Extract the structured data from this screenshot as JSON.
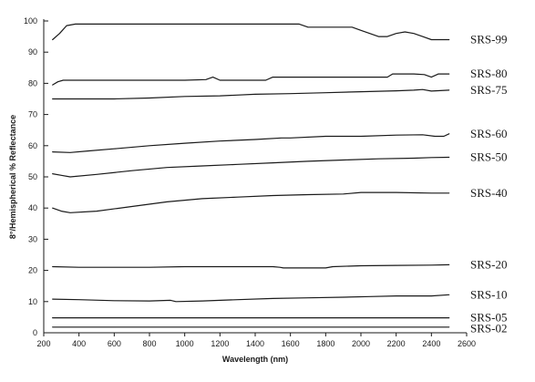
{
  "chart_data": {
    "type": "line",
    "title": "",
    "xlabel": "Wavelength (nm)",
    "ylabel": "8°/Hemispherical % Reflectance",
    "xlim": [
      200,
      2600
    ],
    "ylim": [
      0,
      100
    ],
    "xticks": [
      200,
      400,
      600,
      800,
      1000,
      1200,
      1400,
      1600,
      1800,
      2000,
      2200,
      2400,
      2600
    ],
    "yticks": [
      0,
      10,
      20,
      30,
      40,
      50,
      60,
      70,
      80,
      90,
      100
    ],
    "grid": false,
    "legend": "labels at right end of each line",
    "series": [
      {
        "name": "SRS-99",
        "color": "#1a1a1a",
        "points": [
          [
            250,
            94
          ],
          [
            290,
            96
          ],
          [
            330,
            98.5
          ],
          [
            380,
            99
          ],
          [
            500,
            99
          ],
          [
            700,
            99
          ],
          [
            900,
            99
          ],
          [
            1100,
            99
          ],
          [
            1300,
            99
          ],
          [
            1500,
            99
          ],
          [
            1650,
            99
          ],
          [
            1700,
            98
          ],
          [
            1800,
            98
          ],
          [
            1900,
            98
          ],
          [
            1950,
            98
          ],
          [
            2000,
            97
          ],
          [
            2050,
            96
          ],
          [
            2100,
            95
          ],
          [
            2150,
            95
          ],
          [
            2200,
            96
          ],
          [
            2250,
            96.5
          ],
          [
            2300,
            96
          ],
          [
            2350,
            95
          ],
          [
            2400,
            94
          ],
          [
            2500,
            94
          ]
        ]
      },
      {
        "name": "SRS-80",
        "color": "#1a1a1a",
        "points": [
          [
            250,
            79.5
          ],
          [
            280,
            80.5
          ],
          [
            310,
            81
          ],
          [
            400,
            81
          ],
          [
            600,
            81
          ],
          [
            800,
            81
          ],
          [
            1000,
            81
          ],
          [
            1120,
            81.2
          ],
          [
            1160,
            82
          ],
          [
            1200,
            81
          ],
          [
            1300,
            81
          ],
          [
            1460,
            81
          ],
          [
            1500,
            82
          ],
          [
            1600,
            82
          ],
          [
            1800,
            82
          ],
          [
            2000,
            82
          ],
          [
            2150,
            82
          ],
          [
            2180,
            83
          ],
          [
            2300,
            83
          ],
          [
            2360,
            82.8
          ],
          [
            2400,
            82
          ],
          [
            2440,
            83
          ],
          [
            2500,
            83
          ]
        ]
      },
      {
        "name": "SRS-75",
        "color": "#1a1a1a",
        "points": [
          [
            250,
            75
          ],
          [
            400,
            75
          ],
          [
            600,
            75
          ],
          [
            800,
            75.3
          ],
          [
            1000,
            75.8
          ],
          [
            1200,
            76
          ],
          [
            1400,
            76.5
          ],
          [
            1600,
            76.7
          ],
          [
            1800,
            77
          ],
          [
            2000,
            77.3
          ],
          [
            2200,
            77.6
          ],
          [
            2300,
            77.8
          ],
          [
            2350,
            78
          ],
          [
            2400,
            77.5
          ],
          [
            2500,
            77.8
          ]
        ]
      },
      {
        "name": "SRS-60",
        "color": "#1a1a1a",
        "points": [
          [
            250,
            58
          ],
          [
            350,
            57.8
          ],
          [
            450,
            58.3
          ],
          [
            600,
            59
          ],
          [
            800,
            60
          ],
          [
            1000,
            60.8
          ],
          [
            1200,
            61.5
          ],
          [
            1400,
            62
          ],
          [
            1550,
            62.5
          ],
          [
            1600,
            62.5
          ],
          [
            1800,
            63
          ],
          [
            2000,
            63
          ],
          [
            2200,
            63.4
          ],
          [
            2350,
            63.5
          ],
          [
            2420,
            63
          ],
          [
            2470,
            63
          ],
          [
            2500,
            63.8
          ]
        ]
      },
      {
        "name": "SRS-50",
        "color": "#1a1a1a",
        "points": [
          [
            250,
            51
          ],
          [
            300,
            50.5
          ],
          [
            350,
            50
          ],
          [
            500,
            50.8
          ],
          [
            700,
            52
          ],
          [
            900,
            53
          ],
          [
            1100,
            53.5
          ],
          [
            1300,
            54
          ],
          [
            1500,
            54.5
          ],
          [
            1700,
            55
          ],
          [
            1900,
            55.4
          ],
          [
            2100,
            55.8
          ],
          [
            2300,
            56
          ],
          [
            2400,
            56.2
          ],
          [
            2500,
            56.3
          ]
        ]
      },
      {
        "name": "SRS-40",
        "color": "#1a1a1a",
        "points": [
          [
            250,
            40
          ],
          [
            300,
            39
          ],
          [
            350,
            38.5
          ],
          [
            500,
            39
          ],
          [
            700,
            40.5
          ],
          [
            900,
            42
          ],
          [
            1100,
            43
          ],
          [
            1300,
            43.5
          ],
          [
            1500,
            44
          ],
          [
            1700,
            44.3
          ],
          [
            1900,
            44.5
          ],
          [
            2000,
            45
          ],
          [
            2200,
            45
          ],
          [
            2400,
            44.8
          ],
          [
            2500,
            44.8
          ]
        ]
      },
      {
        "name": "SRS-20",
        "color": "#1a1a1a",
        "points": [
          [
            250,
            21.2
          ],
          [
            400,
            21
          ],
          [
            600,
            21
          ],
          [
            800,
            21
          ],
          [
            1000,
            21.2
          ],
          [
            1200,
            21.2
          ],
          [
            1400,
            21.2
          ],
          [
            1500,
            21.2
          ],
          [
            1540,
            21
          ],
          [
            1560,
            20.8
          ],
          [
            1700,
            20.8
          ],
          [
            1800,
            20.8
          ],
          [
            1840,
            21.2
          ],
          [
            2000,
            21.5
          ],
          [
            2200,
            21.6
          ],
          [
            2400,
            21.7
          ],
          [
            2500,
            21.8
          ]
        ]
      },
      {
        "name": "SRS-10",
        "color": "#1a1a1a",
        "points": [
          [
            250,
            10.8
          ],
          [
            400,
            10.6
          ],
          [
            600,
            10.3
          ],
          [
            800,
            10.2
          ],
          [
            920,
            10.4
          ],
          [
            950,
            10
          ],
          [
            1100,
            10.2
          ],
          [
            1300,
            10.6
          ],
          [
            1500,
            11
          ],
          [
            1700,
            11.2
          ],
          [
            1900,
            11.4
          ],
          [
            2050,
            11.6
          ],
          [
            2200,
            11.8
          ],
          [
            2400,
            11.8
          ],
          [
            2500,
            12.2
          ]
        ]
      },
      {
        "name": "SRS-05",
        "color": "#1a1a1a",
        "points": [
          [
            250,
            4.8
          ],
          [
            2500,
            4.8
          ]
        ]
      },
      {
        "name": "SRS-02",
        "color": "#1a1a1a",
        "points": [
          [
            250,
            1.8
          ],
          [
            2500,
            1.8
          ]
        ]
      }
    ]
  }
}
